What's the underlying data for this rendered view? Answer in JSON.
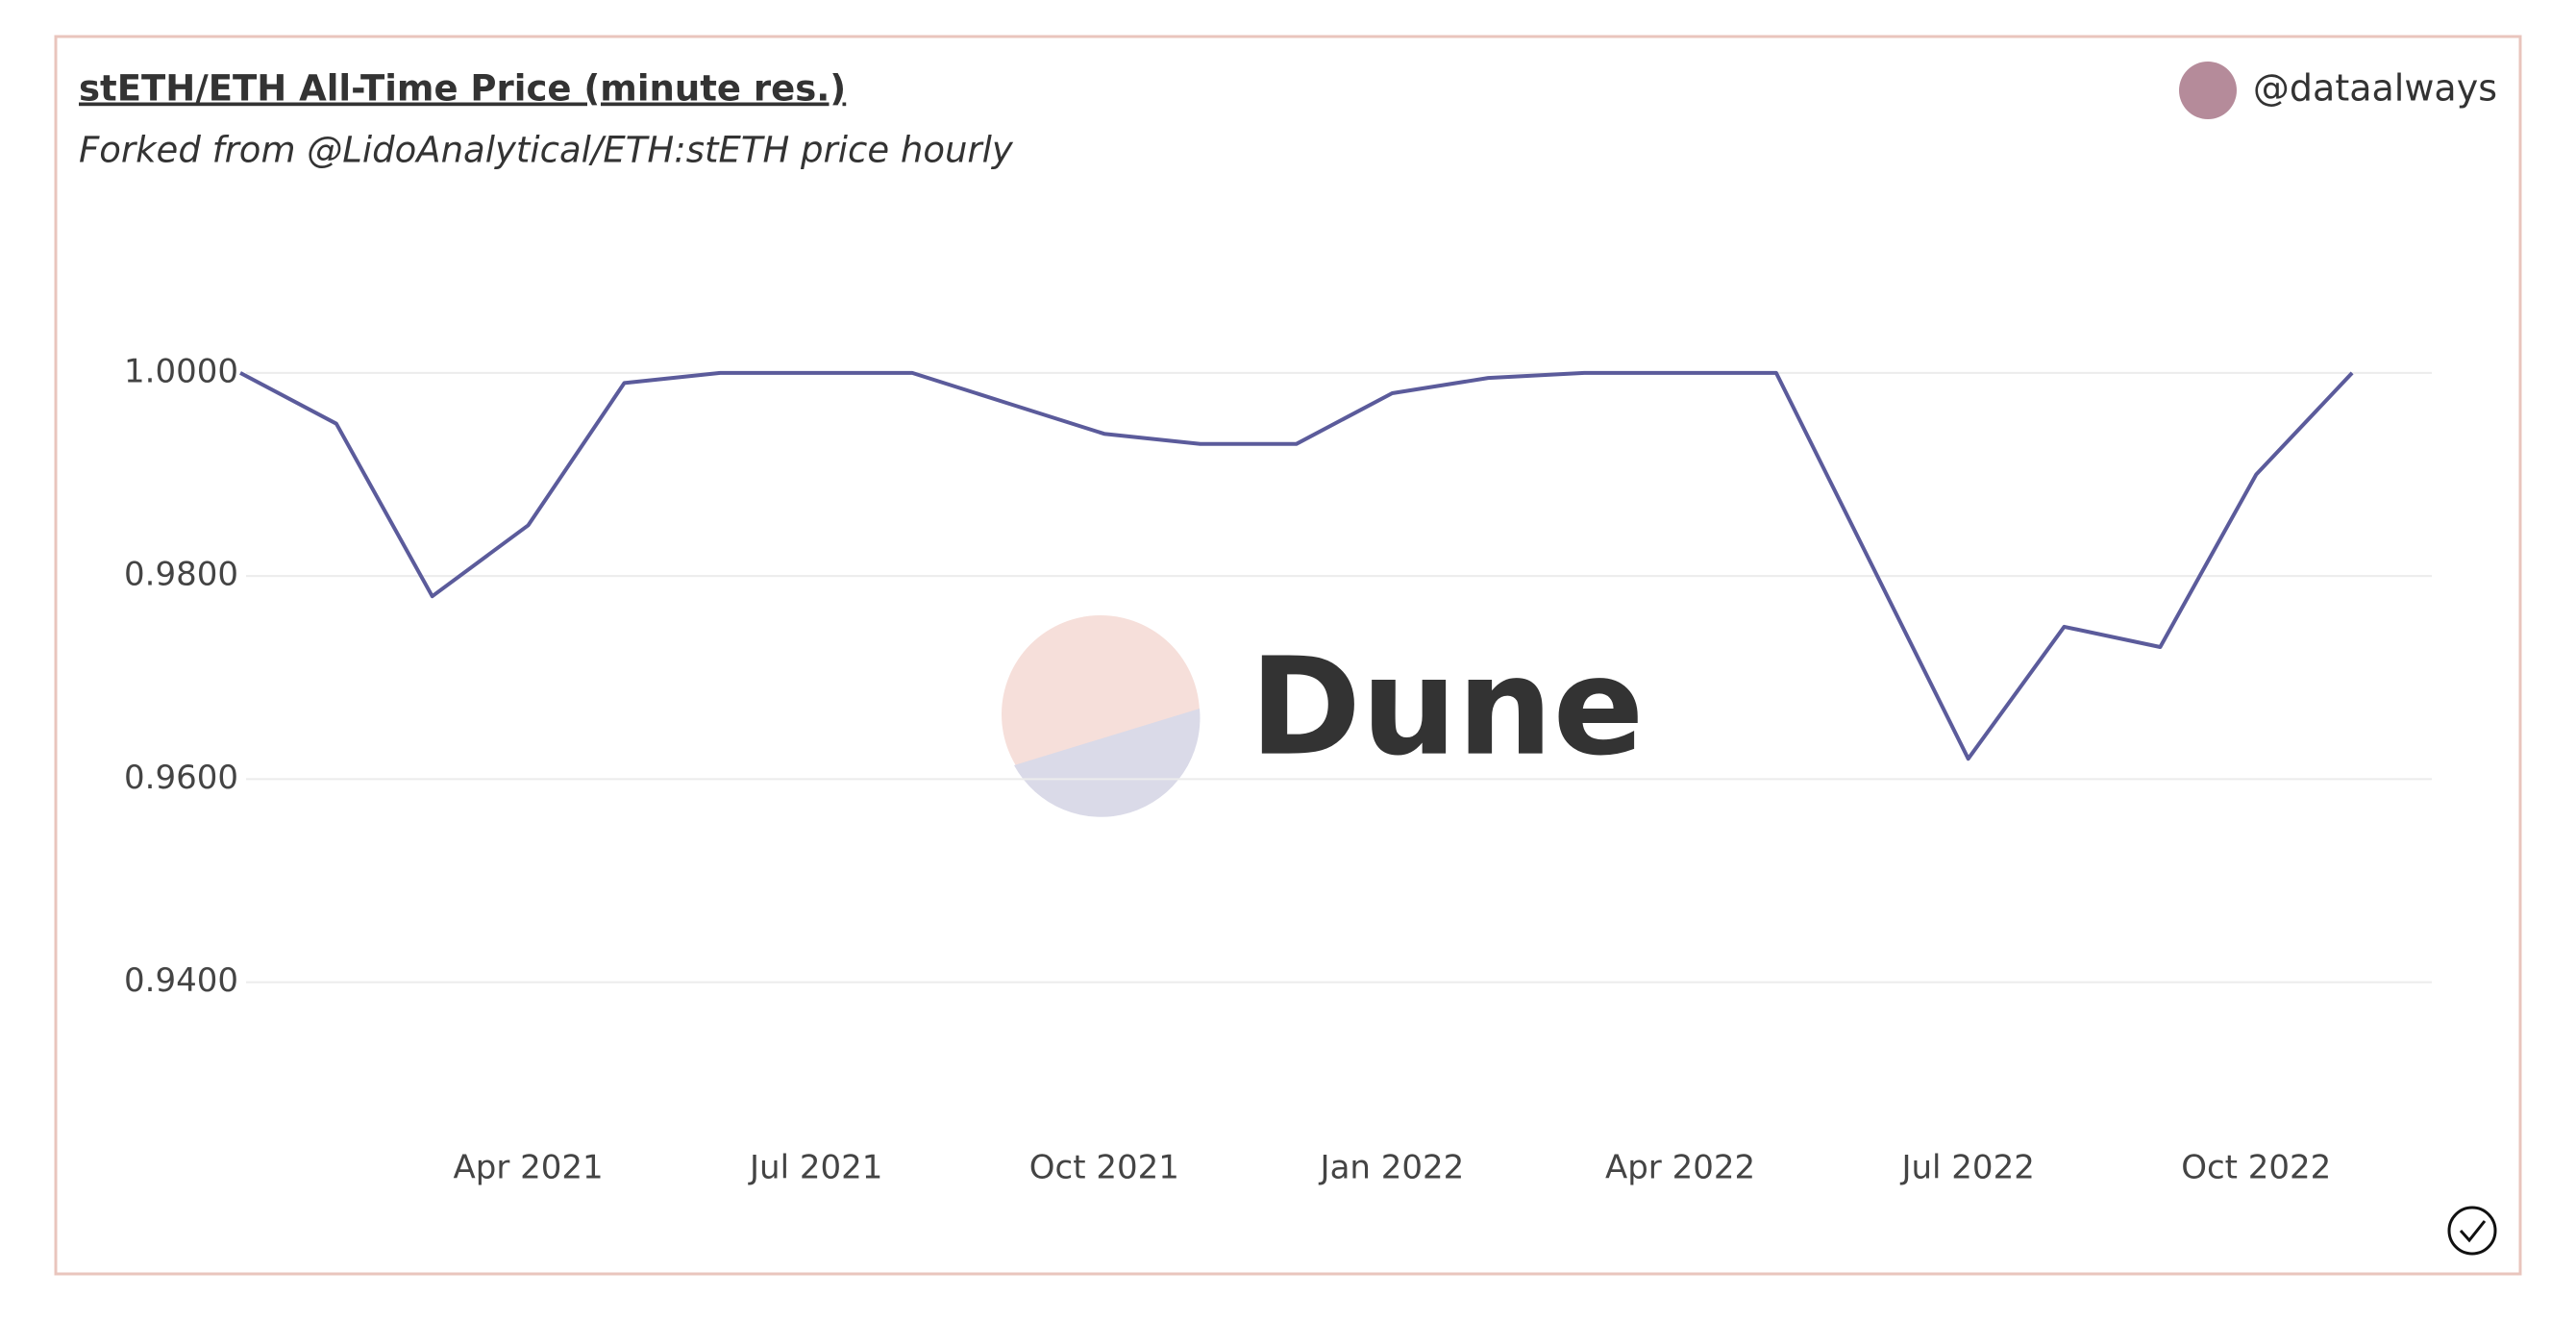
{
  "chart_data": {
    "type": "line",
    "title": "stETH/ETH All-Time Price (minute res.)",
    "subtitle": "Forked from @LidoAnalytical/ETH:stETH price hourly",
    "author": "@dataalways",
    "watermark": "Dune",
    "x": [
      "2021-01",
      "2021-02",
      "2021-03",
      "2021-04",
      "2021-05",
      "2021-06",
      "2021-07",
      "2021-08",
      "2021-09",
      "2021-10",
      "2021-11",
      "2021-12",
      "2022-01",
      "2022-02",
      "2022-03",
      "2022-04",
      "2022-05",
      "2022-06",
      "2022-07",
      "2022-08",
      "2022-09",
      "2022-10",
      "2022-11"
    ],
    "values": [
      1.0,
      0.995,
      0.978,
      0.985,
      0.999,
      1.0,
      1.0,
      1.0,
      0.997,
      0.994,
      0.993,
      0.993,
      0.998,
      0.9995,
      1.0,
      1.0,
      1.0,
      0.981,
      0.962,
      0.975,
      0.973,
      0.99,
      1.0
    ],
    "color": "#5b5b9b",
    "xlim": [
      "2021-01",
      "2022-12"
    ],
    "xticks": [
      {
        "value": "2021-04",
        "label": "Apr 2021"
      },
      {
        "value": "2021-07",
        "label": "Jul 2021"
      },
      {
        "value": "2021-10",
        "label": "Oct 2021"
      },
      {
        "value": "2022-01",
        "label": "Jan 2022"
      },
      {
        "value": "2022-04",
        "label": "Apr 2022"
      },
      {
        "value": "2022-07",
        "label": "Jul 2022"
      },
      {
        "value": "2022-10",
        "label": "Oct 2022"
      }
    ],
    "ylim": [
      0.925,
      1.014
    ],
    "yticks": [
      {
        "value": 0.94,
        "label": "0.9400"
      },
      {
        "value": 0.96,
        "label": "0.9600"
      },
      {
        "value": 0.98,
        "label": "0.9800"
      },
      {
        "value": 1,
        "label": "1.0000"
      }
    ],
    "grid": true
  }
}
